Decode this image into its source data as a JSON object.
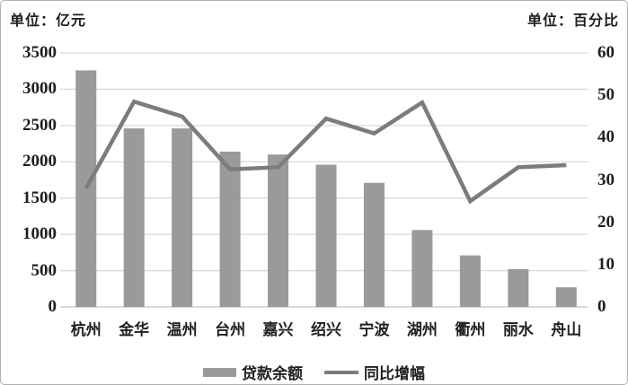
{
  "chart_data": {
    "type": "bar",
    "combo": "bar+line dual-axis",
    "title": "",
    "categories": [
      "杭州",
      "金华",
      "温州",
      "台州",
      "嘉兴",
      "绍兴",
      "宁波",
      "湖州",
      "衢州",
      "丽水",
      "舟山"
    ],
    "series": [
      {
        "name": "贷款余额",
        "type": "bar",
        "axis": "left",
        "values": [
          3260,
          2460,
          2460,
          2140,
          2100,
          1960,
          1710,
          1060,
          710,
          520,
          270
        ]
      },
      {
        "name": "同比增幅",
        "type": "line",
        "axis": "right",
        "values": [
          28,
          48.5,
          45,
          32.5,
          33,
          44.5,
          41,
          48.3,
          25,
          33,
          33.5
        ]
      }
    ],
    "left_axis": {
      "unit_label": "单位：亿元",
      "min": 0,
      "max": 3500,
      "step": 500,
      "ticks": [
        "3500",
        "3000",
        "2500",
        "2000",
        "1500",
        "1000",
        "500",
        "0"
      ]
    },
    "right_axis": {
      "unit_label": "单位：百分比",
      "min": 0,
      "max": 60,
      "step": 10,
      "ticks": [
        "60",
        "50",
        "40",
        "30",
        "20",
        "10",
        "0"
      ]
    },
    "grid": "horizontal gridlines on",
    "legend_position": "bottom",
    "colors": {
      "bar": "#9a9a9a",
      "line": "#7c7c7c",
      "grid": "#d9d9d9",
      "axis_line": "#c4c4c4",
      "text": "#1f1f1f",
      "border": "#b0b0b0"
    }
  }
}
